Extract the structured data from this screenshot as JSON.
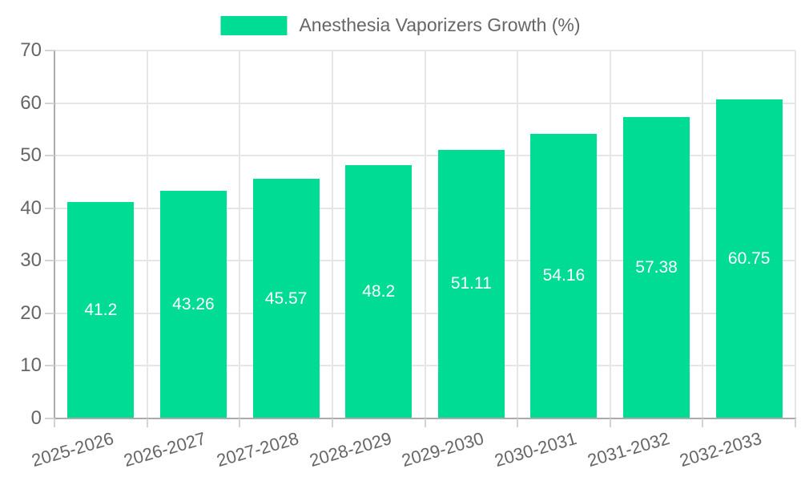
{
  "chart_data": {
    "type": "bar",
    "title": "Anesthesia Vaporizers Growth (%)",
    "legend_position": "top",
    "categories": [
      "2025-2026",
      "2026-2027",
      "2027-2028",
      "2028-2029",
      "2029-2030",
      "2030-2031",
      "2031-2032",
      "2032-2033"
    ],
    "values": [
      41.2,
      43.26,
      45.57,
      48.2,
      51.11,
      54.16,
      57.38,
      60.75
    ],
    "value_labels": [
      "41.2",
      "43.26",
      "45.57",
      "48.2",
      "51.11",
      "54.16",
      "57.38",
      "60.75"
    ],
    "xlabel": "",
    "ylabel": "",
    "ylim": [
      0,
      70
    ],
    "yticks": [
      0,
      10,
      20,
      30,
      40,
      50,
      60,
      70
    ],
    "grid": true,
    "bar_color": "#00dc93",
    "bar_label_color": "#ffffff",
    "grid_color": "#e6e6e6",
    "axis_color": "#ababab",
    "tick_color": "#d2d2d2",
    "text_color": "#666666",
    "background_color": "#ffffff"
  }
}
